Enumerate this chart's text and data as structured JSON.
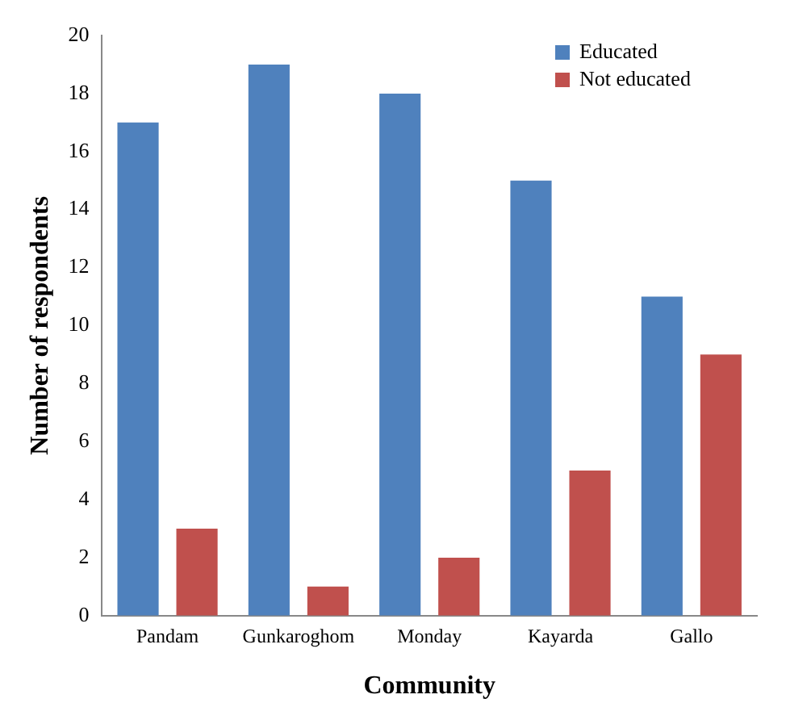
{
  "chart_data": {
    "type": "bar",
    "xlabel": "Community",
    "ylabel": "Number of respondents",
    "categories": [
      "Pandam",
      "Gunkaroghom",
      "Monday",
      "Kayarda",
      "Gallo"
    ],
    "series": [
      {
        "name": "Educated",
        "color": "#4f81bd",
        "values": [
          17,
          19,
          18,
          15,
          11
        ]
      },
      {
        "name": "Not educated",
        "color": "#c0504d",
        "values": [
          3,
          1,
          2,
          5,
          9
        ]
      }
    ],
    "ylim": [
      0,
      20
    ],
    "yticks": [
      0,
      2,
      4,
      6,
      8,
      10,
      12,
      14,
      16,
      18,
      20
    ],
    "grid": false,
    "legend": "top right"
  }
}
